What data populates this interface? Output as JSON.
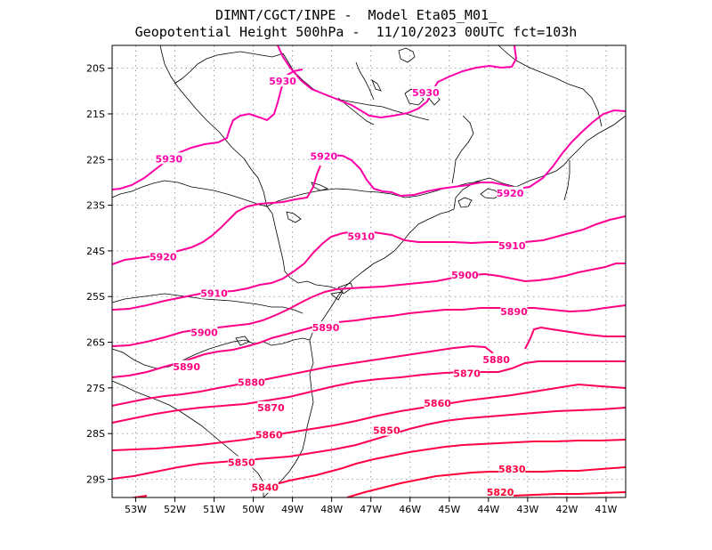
{
  "title": {
    "line1": "DIMNT/CGCT/INPE -  Model Eta05_M01_",
    "line2": "Geopotential Height 500hPa -  11/10/2023 00UTC fct=103h"
  },
  "map_data": {
    "type": "contour",
    "variable": "Geopotential Height 500hPa",
    "units": "gpm",
    "lon_range": [
      -53.6,
      -40.5
    ],
    "lat_range": [
      -29.4,
      -19.5
    ],
    "x_ticks": [
      {
        "lon": -53,
        "label": "53W"
      },
      {
        "lon": -52,
        "label": "52W"
      },
      {
        "lon": -51,
        "label": "51W"
      },
      {
        "lon": -50,
        "label": "50W"
      },
      {
        "lon": -49,
        "label": "49W"
      },
      {
        "lon": -48,
        "label": "48W"
      },
      {
        "lon": -47,
        "label": "47W"
      },
      {
        "lon": -46,
        "label": "46W"
      },
      {
        "lon": -45,
        "label": "45W"
      },
      {
        "lon": -44,
        "label": "44W"
      },
      {
        "lon": -43,
        "label": "43W"
      },
      {
        "lon": -42,
        "label": "42W"
      },
      {
        "lon": -41,
        "label": "41W"
      }
    ],
    "y_ticks": [
      {
        "lat": -20,
        "label": "20S"
      },
      {
        "lat": -21,
        "label": "21S"
      },
      {
        "lat": -22,
        "label": "22S"
      },
      {
        "lat": -23,
        "label": "23S"
      },
      {
        "lat": -24,
        "label": "24S"
      },
      {
        "lat": -25,
        "label": "25S"
      },
      {
        "lat": -26,
        "label": "26S"
      },
      {
        "lat": -27,
        "label": "27S"
      },
      {
        "lat": -28,
        "label": "28S"
      },
      {
        "lat": -29,
        "label": "29S"
      }
    ],
    "contour_labels": [
      {
        "value": 5930,
        "text": "5930",
        "lon": -49.25,
        "lat": -20.3,
        "color": "#ff00aa"
      },
      {
        "value": 5930,
        "text": "5930",
        "lon": -45.6,
        "lat": -20.55,
        "color": "#ff00aa"
      },
      {
        "value": 5930,
        "text": "5930",
        "lon": -52.15,
        "lat": -22.0,
        "color": "#ff00aa"
      },
      {
        "value": 5920,
        "text": "5920",
        "lon": -48.2,
        "lat": -21.95,
        "color": "#ff00aa"
      },
      {
        "value": 5920,
        "text": "5920",
        "lon": -43.45,
        "lat": -22.75,
        "color": "#ff00aa"
      },
      {
        "value": 5920,
        "text": "5920",
        "lon": -52.3,
        "lat": -24.15,
        "color": "#ff0099"
      },
      {
        "value": 5910,
        "text": "5910",
        "lon": -47.25,
        "lat": -23.7,
        "color": "#ff0090"
      },
      {
        "value": 5910,
        "text": "5910",
        "lon": -43.4,
        "lat": -23.9,
        "color": "#ff0090"
      },
      {
        "value": 5910,
        "text": "5910",
        "lon": -51.0,
        "lat": -24.95,
        "color": "#ff0090"
      },
      {
        "value": 5900,
        "text": "5900",
        "lon": -44.6,
        "lat": -24.55,
        "color": "#ff0088"
      },
      {
        "value": 5900,
        "text": "5900",
        "lon": -51.25,
        "lat": -25.8,
        "color": "#ff0088"
      },
      {
        "value": 5890,
        "text": "5890",
        "lon": -48.15,
        "lat": -25.7,
        "color": "#ff0080"
      },
      {
        "value": 5890,
        "text": "5890",
        "lon": -43.35,
        "lat": -25.35,
        "color": "#ff0080"
      },
      {
        "value": 5890,
        "text": "5890",
        "lon": -51.7,
        "lat": -26.55,
        "color": "#ff0080"
      },
      {
        "value": 5880,
        "text": "5880",
        "lon": -43.8,
        "lat": -26.4,
        "color": "#ff0070"
      },
      {
        "value": 5880,
        "text": "5880",
        "lon": -50.05,
        "lat": -26.9,
        "color": "#ff0070"
      },
      {
        "value": 5870,
        "text": "5870",
        "lon": -44.55,
        "lat": -26.7,
        "color": "#ff0066"
      },
      {
        "value": 5870,
        "text": "5870",
        "lon": -49.55,
        "lat": -27.45,
        "color": "#ff0066"
      },
      {
        "value": 5860,
        "text": "5860",
        "lon": -45.3,
        "lat": -27.35,
        "color": "#ff005a"
      },
      {
        "value": 5860,
        "text": "5860",
        "lon": -49.6,
        "lat": -28.05,
        "color": "#ff005a"
      },
      {
        "value": 5850,
        "text": "5850",
        "lon": -46.6,
        "lat": -27.95,
        "color": "#ff0050"
      },
      {
        "value": 5850,
        "text": "5850",
        "lon": -50.3,
        "lat": -28.65,
        "color": "#ff0050"
      },
      {
        "value": 5840,
        "text": "5840",
        "lon": -49.7,
        "lat": -29.2,
        "color": "#ff0045"
      },
      {
        "value": 5830,
        "text": "5830",
        "lon": -43.4,
        "lat": -28.8,
        "color": "#ff003a"
      },
      {
        "value": 5820,
        "text": "5820",
        "lon": -43.7,
        "lat": -29.3,
        "color": "#ff0030"
      }
    ]
  }
}
